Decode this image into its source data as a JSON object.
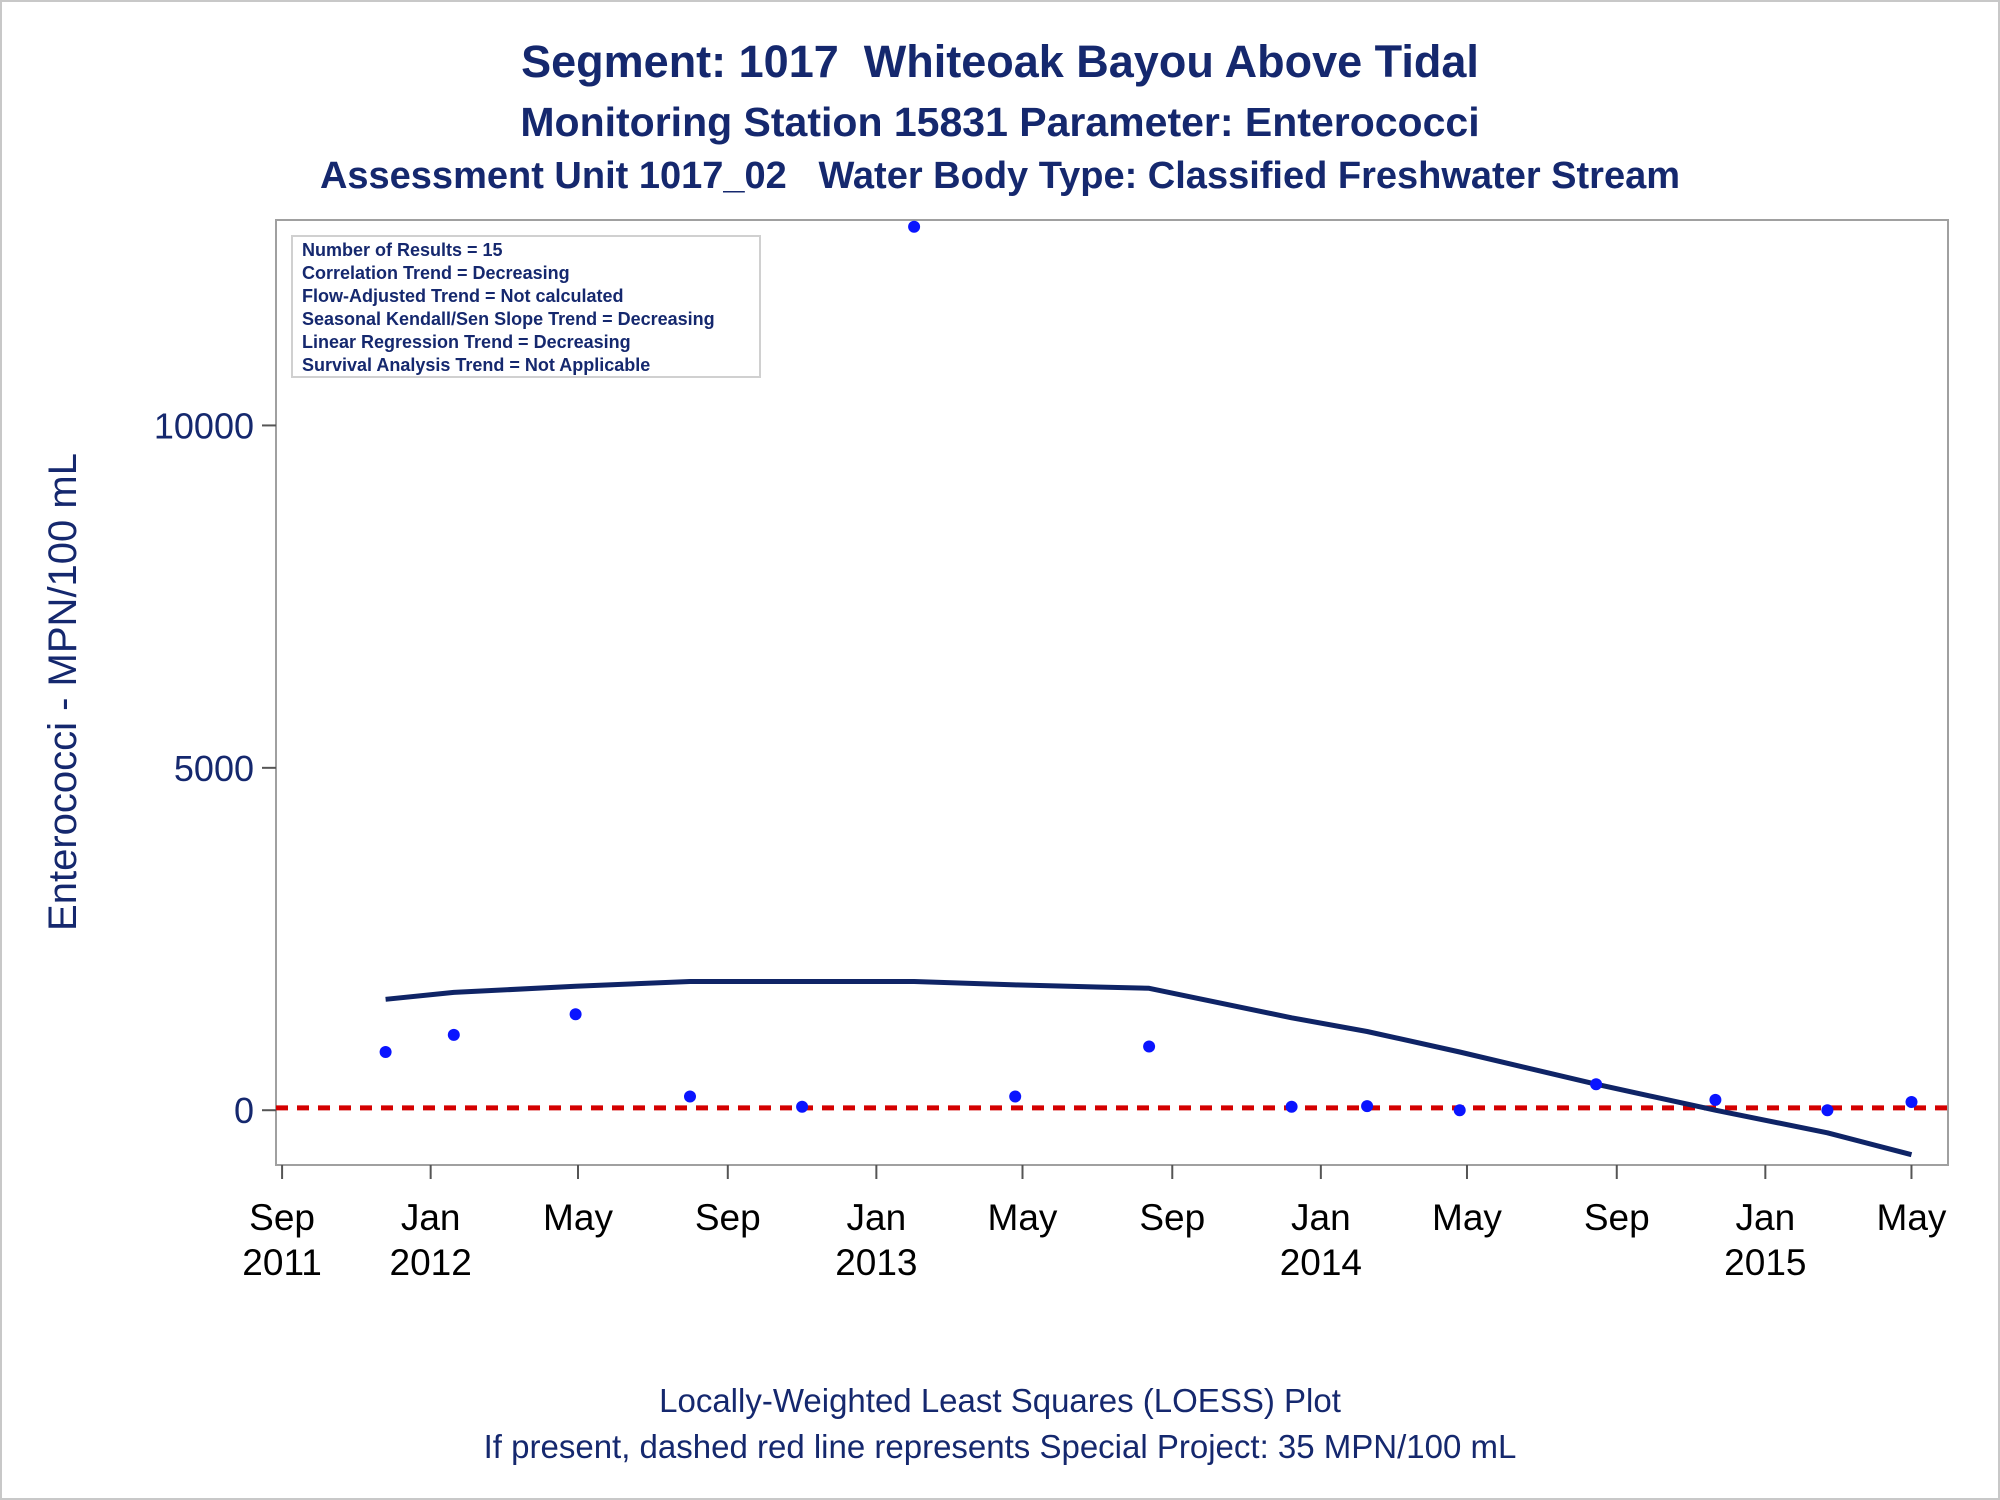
{
  "titles": {
    "line1": "Segment: 1017  Whiteoak Bayou Above Tidal",
    "line2": "Monitoring Station 15831 Parameter: Enterococci",
    "line3": "Assessment Unit 1017_02   Water Body Type: Classified Freshwater Stream"
  },
  "footer": {
    "line1": "Locally-Weighted Least Squares (LOESS) Plot",
    "line2": "If present, dashed red line represents Special Project: 35 MPN/100 mL"
  },
  "info_box": [
    "Number of Results = 15",
    "Correlation Trend = Decreasing",
    "Flow-Adjusted Trend = Not calculated",
    "Seasonal Kendall/Sen Slope Trend = Decreasing",
    "Linear Regression Trend = Decreasing",
    "Survival Analysis Trend = Not Applicable"
  ],
  "colors": {
    "text": "#15286e",
    "points": "#0a14ff",
    "loess": "#0f2466",
    "reference": "#d40000",
    "frame": "#a0a0a0"
  },
  "chart_data": {
    "type": "scatter",
    "ylabel": "Enterococci - MPN/100 mL",
    "xlabel": "",
    "ylim": [
      -800,
      13000
    ],
    "xlim": [
      "2011-08-27",
      "2015-05-31"
    ],
    "yticks": [
      0,
      5000,
      10000
    ],
    "xticks": [
      {
        "date": "2011-09-01",
        "label": [
          "Sep",
          "2011"
        ]
      },
      {
        "date": "2012-01-01",
        "label": [
          "Jan",
          "2012"
        ]
      },
      {
        "date": "2012-05-01",
        "label": [
          "May",
          ""
        ]
      },
      {
        "date": "2012-09-01",
        "label": [
          "Sep",
          ""
        ]
      },
      {
        "date": "2013-01-01",
        "label": [
          "Jan",
          "2013"
        ]
      },
      {
        "date": "2013-05-01",
        "label": [
          "May",
          ""
        ]
      },
      {
        "date": "2013-09-01",
        "label": [
          "Sep",
          ""
        ]
      },
      {
        "date": "2014-01-01",
        "label": [
          "Jan",
          "2014"
        ]
      },
      {
        "date": "2014-05-01",
        "label": [
          "May",
          ""
        ]
      },
      {
        "date": "2014-09-01",
        "label": [
          "Sep",
          ""
        ]
      },
      {
        "date": "2015-01-01",
        "label": [
          "Jan",
          "2015"
        ]
      },
      {
        "date": "2015-05-01",
        "label": [
          "May",
          ""
        ]
      }
    ],
    "grid": false,
    "series": [
      {
        "kind": "points",
        "points": [
          {
            "x": "2011-11-25",
            "y": 850
          },
          {
            "x": "2012-01-20",
            "y": 1100
          },
          {
            "x": "2012-04-29",
            "y": 1400
          },
          {
            "x": "2012-08-01",
            "y": 200
          },
          {
            "x": "2012-11-01",
            "y": 50
          },
          {
            "x": "2013-02-01",
            "y": 12900
          },
          {
            "x": "2013-04-25",
            "y": 200
          },
          {
            "x": "2013-08-13",
            "y": 930
          },
          {
            "x": "2013-12-08",
            "y": 50
          },
          {
            "x": "2014-02-08",
            "y": 60
          },
          {
            "x": "2014-04-25",
            "y": 0
          },
          {
            "x": "2014-08-15",
            "y": 380
          },
          {
            "x": "2014-11-21",
            "y": 150
          },
          {
            "x": "2015-02-21",
            "y": 0
          },
          {
            "x": "2015-05-01",
            "y": 120
          }
        ]
      },
      {
        "kind": "loess",
        "points": [
          {
            "x": "2011-11-25",
            "y": 1620
          },
          {
            "x": "2012-01-20",
            "y": 1720
          },
          {
            "x": "2012-04-29",
            "y": 1810
          },
          {
            "x": "2012-08-01",
            "y": 1880
          },
          {
            "x": "2012-11-01",
            "y": 1880
          },
          {
            "x": "2013-02-01",
            "y": 1880
          },
          {
            "x": "2013-04-25",
            "y": 1830
          },
          {
            "x": "2013-07-01",
            "y": 1800
          },
          {
            "x": "2013-08-13",
            "y": 1780
          },
          {
            "x": "2013-12-08",
            "y": 1350
          },
          {
            "x": "2014-02-08",
            "y": 1150
          },
          {
            "x": "2014-04-25",
            "y": 850
          },
          {
            "x": "2014-08-15",
            "y": 380
          },
          {
            "x": "2014-11-21",
            "y": 0
          },
          {
            "x": "2015-02-21",
            "y": -330
          },
          {
            "x": "2015-05-01",
            "y": -650
          }
        ]
      },
      {
        "kind": "reference",
        "y": 35
      }
    ]
  }
}
